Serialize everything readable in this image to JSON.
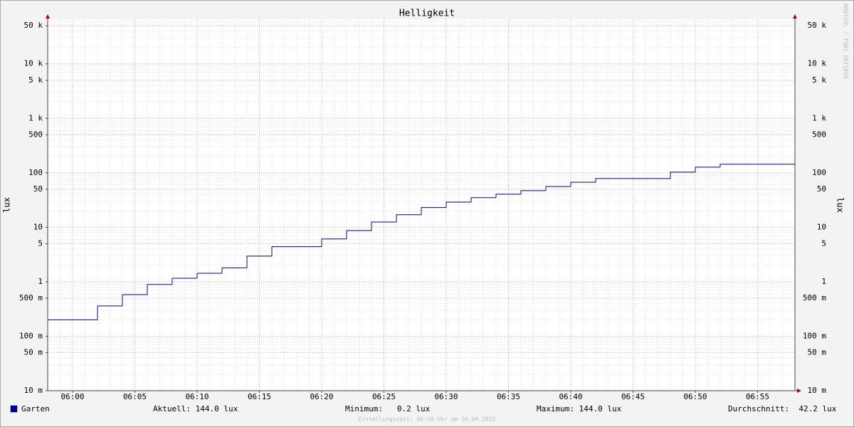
{
  "chart_data": {
    "type": "step-line",
    "title": "Helligkeit",
    "y_label": "lux",
    "watermark": "RRDTOOL / TOBI OETIKER",
    "log_scale": true,
    "grid": true,
    "x": [
      "05:58",
      "06:00",
      "06:02",
      "06:04",
      "06:06",
      "06:08",
      "06:10",
      "06:12",
      "06:14",
      "06:16",
      "06:18",
      "06:20",
      "06:22",
      "06:24",
      "06:26",
      "06:28",
      "06:30",
      "06:32",
      "06:34",
      "06:36",
      "06:38",
      "06:40",
      "06:42",
      "06:44",
      "06:46",
      "06:48",
      "06:50",
      "06:52",
      "06:54",
      "06:56"
    ],
    "xlim": [
      "05:58",
      "06:58"
    ],
    "xticks": [
      "06:00",
      "06:05",
      "06:10",
      "06:15",
      "06:20",
      "06:25",
      "06:30",
      "06:35",
      "06:40",
      "06:45",
      "06:50",
      "06:55"
    ],
    "ylim": [
      0.01,
      66000
    ],
    "yticks": [
      {
        "value": 0.01,
        "label": "10 m"
      },
      {
        "value": 0.05,
        "label": "50 m"
      },
      {
        "value": 0.1,
        "label": "100 m"
      },
      {
        "value": 0.5,
        "label": "500 m"
      },
      1,
      5,
      10,
      50,
      100,
      500,
      {
        "value": 1000,
        "label": "1 k"
      },
      {
        "value": 5000,
        "label": "5 k"
      },
      {
        "value": 10000,
        "label": "10 k"
      },
      {
        "value": 50000,
        "label": "50 k"
      }
    ],
    "series": [
      {
        "name": "Garten",
        "color": "#000088",
        "values": [
          0.2,
          0.2,
          0.36,
          0.58,
          0.89,
          1.16,
          1.43,
          1.8,
          2.96,
          4.4,
          4.4,
          6.1,
          8.7,
          12.5,
          17,
          23,
          29,
          35,
          40.5,
          47,
          56,
          67,
          78.5,
          78.5,
          78.5,
          103,
          127,
          144,
          144,
          144
        ]
      }
    ],
    "stats": [
      "Aktuell: 144.0 lux",
      "Minimum:   0.2 lux",
      "Maximum: 144.0 lux",
      "Durchschnitt:  42.2 lux"
    ],
    "footer": "Erstellungszeit: 06:58 Uhr am 16.04.2025"
  }
}
